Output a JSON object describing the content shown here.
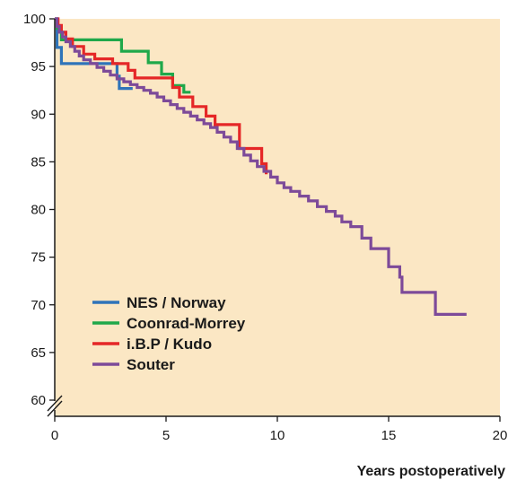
{
  "chart_data": {
    "type": "line",
    "title": "",
    "xlabel": "Years postoperatively",
    "ylabel": "",
    "xlim": [
      0,
      20
    ],
    "ylim": [
      60,
      100
    ],
    "xticks": [
      0,
      5,
      10,
      15,
      20
    ],
    "yticks": [
      60,
      65,
      70,
      75,
      80,
      85,
      90,
      95,
      100
    ],
    "y_axis_break": true,
    "grid": false,
    "legend": "bottom-left",
    "plot_background": "#fbe7c4",
    "series": [
      {
        "name": "NES / Norway",
        "color": "#2f74b9",
        "step": true,
        "points": [
          [
            0,
            100
          ],
          [
            0.1,
            97
          ],
          [
            0.3,
            95.3
          ],
          [
            2.8,
            95.3
          ],
          [
            2.8,
            94
          ],
          [
            2.9,
            92.7
          ],
          [
            3.5,
            92.7
          ]
        ]
      },
      {
        "name": "Coonrad-Morrey",
        "color": "#1fa84a",
        "step": true,
        "points": [
          [
            0,
            100
          ],
          [
            0.1,
            99
          ],
          [
            0.3,
            97.8
          ],
          [
            3,
            97.8
          ],
          [
            3,
            96.6
          ],
          [
            4.2,
            96.6
          ],
          [
            4.2,
            95.4
          ],
          [
            4.8,
            95.4
          ],
          [
            4.8,
            94.2
          ],
          [
            5.3,
            94.2
          ],
          [
            5.3,
            93
          ],
          [
            5.8,
            93
          ],
          [
            5.8,
            92.3
          ],
          [
            6.1,
            92.3
          ]
        ]
      },
      {
        "name": "i.B.P / Kudo",
        "color": "#e52727",
        "step": true,
        "points": [
          [
            0,
            100
          ],
          [
            0.15,
            99.3
          ],
          [
            0.3,
            98.6
          ],
          [
            0.5,
            97.9
          ],
          [
            0.8,
            97.1
          ],
          [
            1.3,
            96.3
          ],
          [
            1.8,
            95.8
          ],
          [
            2.6,
            95.3
          ],
          [
            3.3,
            94.6
          ],
          [
            3.6,
            93.8
          ],
          [
            5.3,
            93.8
          ],
          [
            5.3,
            92.8
          ],
          [
            5.6,
            92.8
          ],
          [
            5.6,
            91.8
          ],
          [
            6.2,
            91.8
          ],
          [
            6.2,
            90.8
          ],
          [
            6.8,
            90.8
          ],
          [
            6.8,
            89.8
          ],
          [
            7.2,
            89.8
          ],
          [
            7.2,
            88.9
          ],
          [
            8.3,
            88.9
          ],
          [
            8.3,
            86.4
          ],
          [
            9.3,
            86.4
          ],
          [
            9.3,
            84.8
          ],
          [
            9.5,
            84.8
          ],
          [
            9.5,
            83.7
          ]
        ]
      },
      {
        "name": "Souter",
        "color": "#7d4a99",
        "step": true,
        "points": [
          [
            0,
            100
          ],
          [
            0.1,
            99.2
          ],
          [
            0.2,
            98.6
          ],
          [
            0.35,
            98.1
          ],
          [
            0.5,
            97.6
          ],
          [
            0.7,
            97.1
          ],
          [
            0.9,
            96.6
          ],
          [
            1.1,
            96.1
          ],
          [
            1.3,
            95.7
          ],
          [
            1.6,
            95.3
          ],
          [
            1.9,
            94.9
          ],
          [
            2.2,
            94.5
          ],
          [
            2.5,
            94.1
          ],
          [
            2.8,
            93.7
          ],
          [
            3.1,
            93.4
          ],
          [
            3.4,
            93.1
          ],
          [
            3.7,
            92.8
          ],
          [
            4,
            92.5
          ],
          [
            4.3,
            92.2
          ],
          [
            4.6,
            91.8
          ],
          [
            4.9,
            91.4
          ],
          [
            5.2,
            91
          ],
          [
            5.5,
            90.6
          ],
          [
            5.8,
            90.2
          ],
          [
            6.1,
            89.8
          ],
          [
            6.4,
            89.4
          ],
          [
            6.7,
            89
          ],
          [
            7,
            88.6
          ],
          [
            7.3,
            88.1
          ],
          [
            7.6,
            87.6
          ],
          [
            7.9,
            87.1
          ],
          [
            8.2,
            86.4
          ],
          [
            8.5,
            85.7
          ],
          [
            8.8,
            85.1
          ],
          [
            9.1,
            84.5
          ],
          [
            9.4,
            84
          ],
          [
            9.7,
            83.4
          ],
          [
            10,
            82.8
          ],
          [
            10.3,
            82.3
          ],
          [
            10.6,
            81.9
          ],
          [
            11,
            81.4
          ],
          [
            11.4,
            80.9
          ],
          [
            11.8,
            80.3
          ],
          [
            12.2,
            79.8
          ],
          [
            12.6,
            79.3
          ],
          [
            12.9,
            78.7
          ],
          [
            13.3,
            78.2
          ],
          [
            13.8,
            77.6
          ],
          [
            13.8,
            77
          ],
          [
            14.2,
            77
          ],
          [
            14.2,
            75.9
          ],
          [
            15,
            75.9
          ],
          [
            15,
            74
          ],
          [
            15.5,
            74
          ],
          [
            15.5,
            72.9
          ],
          [
            15.6,
            72.9
          ],
          [
            15.6,
            71.3
          ],
          [
            17.1,
            71.3
          ],
          [
            17.1,
            69
          ],
          [
            18.5,
            69
          ]
        ]
      }
    ]
  }
}
